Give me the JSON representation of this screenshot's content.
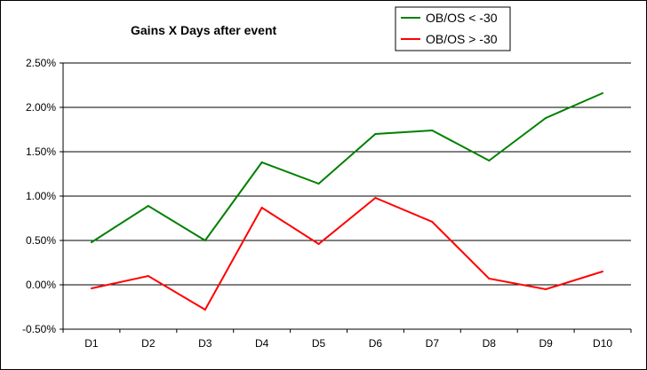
{
  "chart_data": {
    "type": "line",
    "title": "Gains X Days after event",
    "xlabel": "",
    "ylabel": "",
    "categories": [
      "D1",
      "D2",
      "D3",
      "D4",
      "D5",
      "D6",
      "D7",
      "D8",
      "D9",
      "D10"
    ],
    "ylim": [
      -0.5,
      2.5
    ],
    "y_ticks": [
      -0.5,
      0,
      0.5,
      1.0,
      1.5,
      2.0,
      2.5
    ],
    "y_tick_labels": [
      "-0.50%",
      "0.00%",
      "0.50%",
      "1.00%",
      "1.50%",
      "2.00%",
      "2.50%"
    ],
    "grid": true,
    "legend_position": "top-right",
    "series": [
      {
        "name": "OB/OS < -30",
        "color": "#008000",
        "values": [
          0.48,
          0.89,
          0.5,
          1.38,
          1.14,
          1.7,
          1.74,
          1.4,
          1.88,
          2.16
        ]
      },
      {
        "name": "OB/OS > -30",
        "color": "#ff0000",
        "values": [
          -0.04,
          0.1,
          -0.28,
          0.87,
          0.46,
          0.98,
          0.71,
          0.07,
          -0.05,
          0.15
        ]
      }
    ]
  }
}
